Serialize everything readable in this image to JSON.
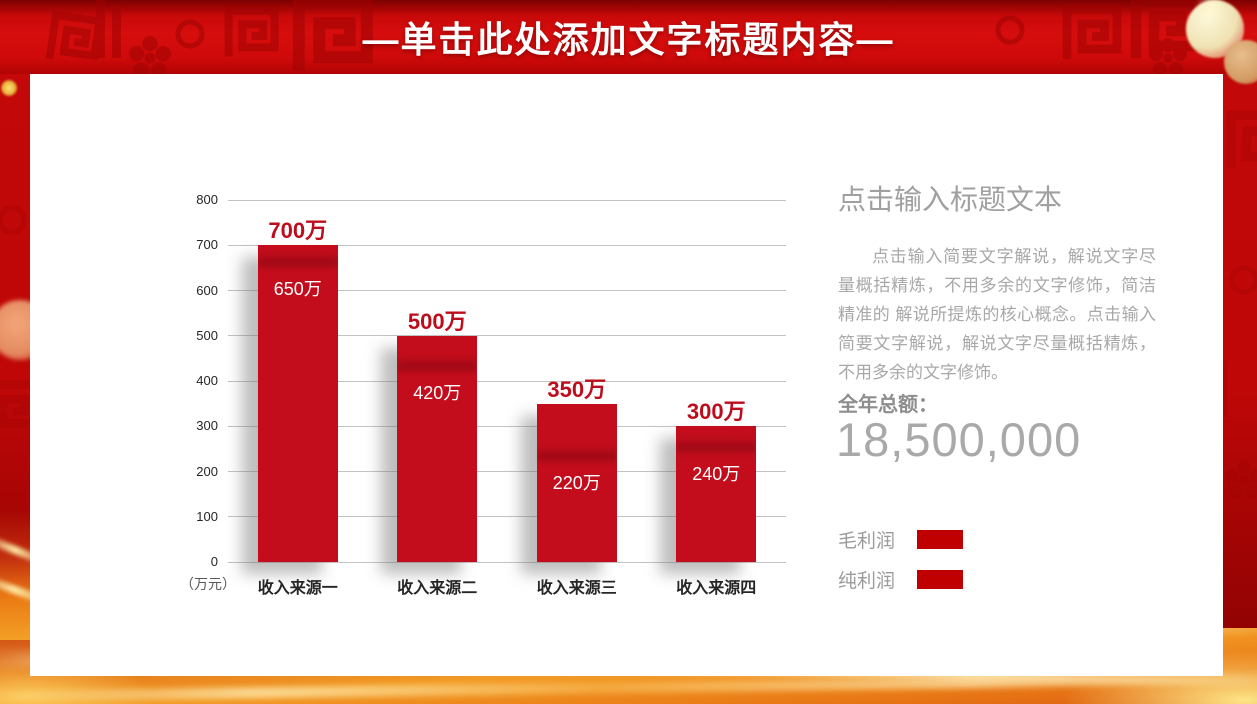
{
  "header": {
    "title": "—单击此处添加文字标题内容—"
  },
  "panel": {
    "title": "点击输入标题文本",
    "body": "点击输入简要文字解说，解说文字尽量概括精炼，不用多余的文字修饰，简洁精准的 解说所提炼的核心概念。点击输入简要文字解说，解说文字尽量概括精炼，不用多余的文字修饰。",
    "total_label": "全年总额：",
    "total_value": "18,500,000",
    "legend": [
      {
        "label": "毛利润",
        "color": "#c00000"
      },
      {
        "label": "纯利润",
        "color": "#c00000"
      }
    ]
  },
  "chart_data": {
    "type": "bar",
    "categories": [
      "收入来源一",
      "收入来源二",
      "收入来源三",
      "收入来源四"
    ],
    "series": [
      {
        "name": "毛利润",
        "values": [
          700,
          500,
          350,
          300
        ],
        "data_labels": [
          "700万",
          "500万",
          "350万",
          "300万"
        ],
        "label_position": "above-bar",
        "label_color": "#bd0d1c"
      },
      {
        "name": "纯利润",
        "values": [
          650,
          420,
          220,
          240
        ],
        "data_labels": [
          "650万",
          "420万",
          "220万",
          "240万"
        ],
        "label_position": "inside-bar",
        "label_color": "#ffffff"
      }
    ],
    "unit_label": "（万元）",
    "xlabel": "",
    "ylabel": "",
    "ylim": [
      0,
      800
    ],
    "ytick_step": 100,
    "bar_color": "#c30d1c",
    "grid": true,
    "legend_position": "right-panel-bottom"
  }
}
